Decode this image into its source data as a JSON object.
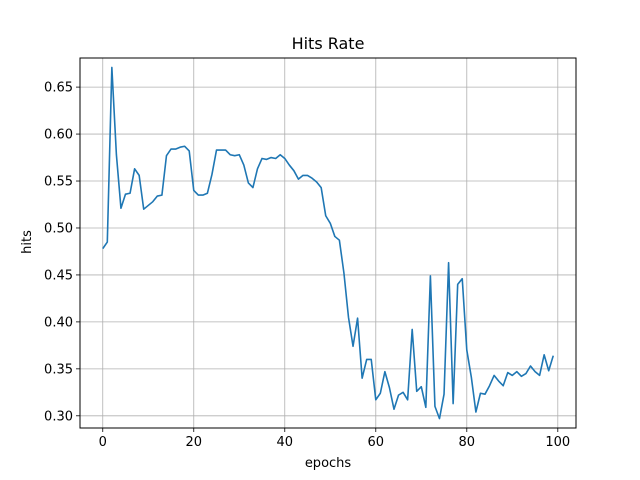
{
  "chart_data": {
    "type": "line",
    "title": "Hits Rate",
    "xlabel": "epochs",
    "ylabel": "hits",
    "xlim": [
      -5,
      104
    ],
    "ylim": [
      0.287,
      0.681
    ],
    "xticks": [
      0,
      20,
      40,
      60,
      80,
      100
    ],
    "xtick_labels": [
      "0",
      "20",
      "40",
      "60",
      "80",
      "100"
    ],
    "yticks": [
      0.3,
      0.35,
      0.4,
      0.45,
      0.5,
      0.55,
      0.6,
      0.65
    ],
    "ytick_labels": [
      "0.30",
      "0.35",
      "0.40",
      "0.45",
      "0.50",
      "0.55",
      "0.60",
      "0.65"
    ],
    "grid": true,
    "line_color": "#1f77b4",
    "series": [
      {
        "x": [
          0,
          1,
          2,
          3,
          4,
          5,
          6,
          7,
          8,
          9,
          10,
          11,
          12,
          13,
          14,
          15,
          16,
          17,
          18,
          19,
          20,
          21,
          22,
          23,
          24,
          25,
          26,
          27,
          28,
          29,
          30,
          31,
          32,
          33,
          34,
          35,
          36,
          37,
          38,
          39,
          40,
          41,
          42,
          43,
          44,
          45,
          46,
          47,
          48,
          49,
          50,
          51,
          52,
          53,
          54,
          55,
          56,
          57,
          58,
          59,
          60,
          61,
          62,
          63,
          64,
          65,
          66,
          67,
          68,
          69,
          70,
          71,
          72,
          73,
          74,
          75,
          76,
          77,
          78,
          79,
          80,
          81,
          82,
          83,
          84,
          85,
          86,
          87,
          88,
          89,
          90,
          91,
          92,
          93,
          94,
          95,
          96,
          97,
          98,
          99
        ],
        "values": [
          0.478,
          0.485,
          0.671,
          0.578,
          0.521,
          0.536,
          0.537,
          0.563,
          0.556,
          0.52,
          0.524,
          0.528,
          0.534,
          0.535,
          0.577,
          0.584,
          0.584,
          0.586,
          0.587,
          0.582,
          0.54,
          0.535,
          0.535,
          0.537,
          0.557,
          0.583,
          0.583,
          0.583,
          0.578,
          0.577,
          0.578,
          0.567,
          0.548,
          0.543,
          0.563,
          0.574,
          0.573,
          0.575,
          0.574,
          0.578,
          0.574,
          0.567,
          0.561,
          0.552,
          0.556,
          0.556,
          0.553,
          0.549,
          0.543,
          0.513,
          0.505,
          0.491,
          0.487,
          0.452,
          0.405,
          0.374,
          0.404,
          0.34,
          0.36,
          0.36,
          0.317,
          0.324,
          0.347,
          0.33,
          0.307,
          0.322,
          0.325,
          0.317,
          0.392,
          0.326,
          0.331,
          0.309,
          0.449,
          0.31,
          0.297,
          0.323,
          0.463,
          0.313,
          0.44,
          0.446,
          0.37,
          0.341,
          0.304,
          0.324,
          0.323,
          0.332,
          0.343,
          0.337,
          0.332,
          0.346,
          0.343,
          0.347,
          0.342,
          0.345,
          0.353,
          0.347,
          0.343,
          0.365,
          0.348,
          0.364
        ]
      }
    ]
  }
}
